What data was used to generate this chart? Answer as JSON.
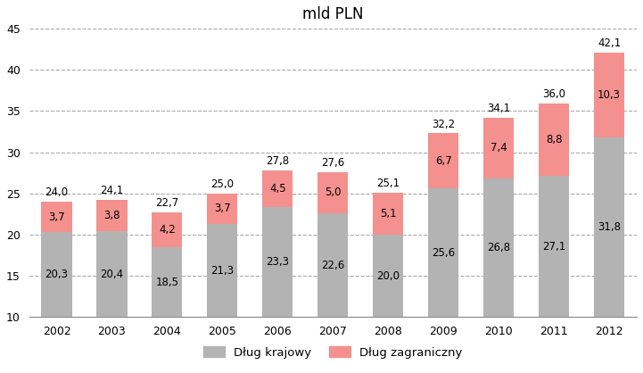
{
  "title": "mld PLN",
  "years": [
    2002,
    2003,
    2004,
    2005,
    2006,
    2007,
    2008,
    2009,
    2010,
    2011,
    2012
  ],
  "krajowy": [
    20.3,
    20.4,
    18.5,
    21.3,
    23.3,
    22.6,
    20.0,
    25.6,
    26.8,
    27.1,
    31.8
  ],
  "zagraniczny": [
    3.7,
    3.8,
    4.2,
    3.7,
    4.5,
    5.0,
    5.1,
    6.7,
    7.4,
    8.8,
    10.3
  ],
  "totals": [
    24.0,
    24.1,
    22.7,
    25.0,
    27.8,
    27.6,
    25.1,
    32.2,
    34.1,
    36.0,
    42.1
  ],
  "color_krajowy": "#b3b3b3",
  "color_zagraniczny": "#f4918e",
  "ylim": [
    10,
    45
  ],
  "yticks": [
    10,
    15,
    20,
    25,
    30,
    35,
    40,
    45
  ],
  "legend_krajowy": "Dług krajowy",
  "legend_zagraniczny": "Dług zagraniczny",
  "bar_width": 0.55,
  "background_color": "#ffffff",
  "grid_color": "#aaaaaa",
  "label_fontsize": 8.5,
  "title_fontsize": 12
}
